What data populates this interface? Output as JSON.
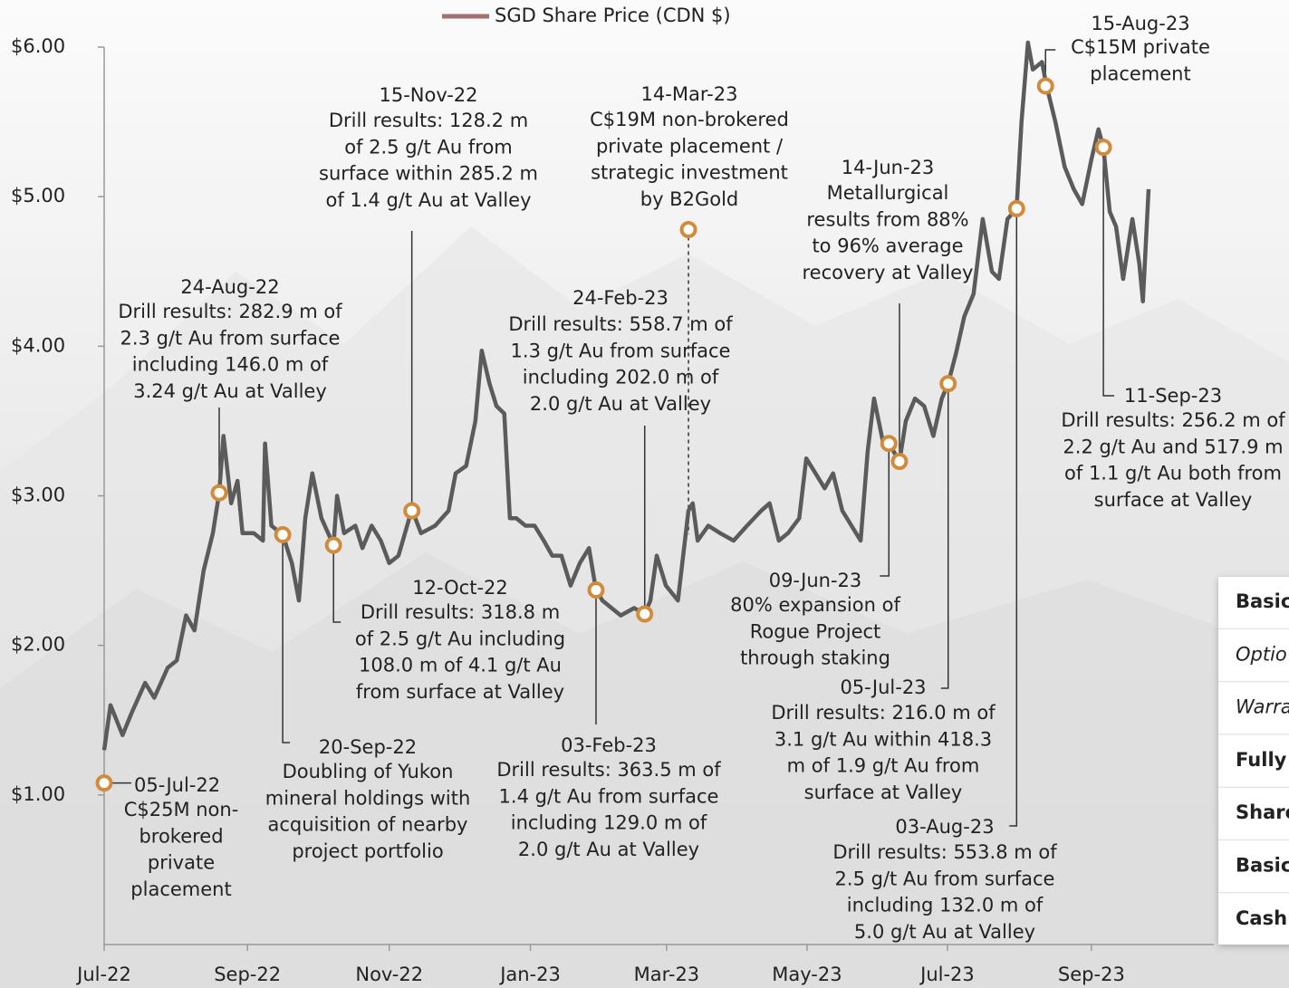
{
  "chart_data": {
    "type": "line",
    "legend": "SGD Share Price (CDN $)",
    "xlim": [
      0,
      16.79
    ],
    "xticks": [
      {
        "value": 0,
        "label": "Jul-22"
      },
      {
        "value": 2.03,
        "label": "Sep-22"
      },
      {
        "value": 4.04,
        "label": "Nov-22"
      },
      {
        "value": 6.04,
        "label": "Jan-23"
      },
      {
        "value": 7.97,
        "label": "Mar-23"
      },
      {
        "value": 9.96,
        "label": "May-23"
      },
      {
        "value": 11.95,
        "label": "Jul-23"
      },
      {
        "value": 13.99,
        "label": "Sep-23"
      }
    ],
    "ylim": [
      0,
      6
    ],
    "yticks": [
      {
        "value": 1,
        "label": "$1.00"
      },
      {
        "value": 2,
        "label": "$2.00"
      },
      {
        "value": 3,
        "label": "$3.00"
      },
      {
        "value": 4,
        "label": "$4.00"
      },
      {
        "value": 5,
        "label": "$5.00"
      },
      {
        "value": 6,
        "label": "$6.00"
      }
    ],
    "series": [
      {
        "name": "SGD Share Price (CDN $)",
        "color": "#5b5b5b",
        "x": [
          0,
          0.09,
          0.26,
          0.39,
          0.58,
          0.71,
          0.9,
          1.03,
          1.16,
          1.28,
          1.41,
          1.54,
          1.63,
          1.69,
          1.8,
          1.89,
          1.96,
          2.12,
          2.25,
          2.28,
          2.37,
          2.53,
          2.66,
          2.76,
          2.85,
          2.95,
          3.08,
          3.25,
          3.3,
          3.4,
          3.56,
          3.66,
          3.79,
          3.92,
          4.04,
          4.17,
          4.36,
          4.49,
          4.69,
          4.88,
          4.98,
          5.13,
          5.26,
          5.35,
          5.46,
          5.56,
          5.67,
          5.75,
          5.84,
          5.97,
          6.1,
          6.23,
          6.35,
          6.48,
          6.61,
          6.74,
          6.87,
          6.97,
          7.06,
          7.19,
          7.32,
          7.51,
          7.66,
          7.74,
          7.83,
          7.96,
          8.13,
          8.28,
          8.34,
          8.41,
          8.56,
          8.73,
          8.92,
          9.11,
          9.31,
          9.43,
          9.56,
          9.69,
          9.85,
          9.95,
          10.08,
          10.21,
          10.33,
          10.46,
          10.59,
          10.72,
          10.82,
          10.91,
          11.04,
          11.12,
          11.27,
          11.36,
          11.49,
          11.62,
          11.75,
          11.87,
          11.96,
          12.07,
          12.19,
          12.32,
          12.45,
          12.58,
          12.68,
          12.8,
          12.93,
          13.0,
          13.09,
          13.16,
          13.29,
          13.35,
          13.48,
          13.61,
          13.74,
          13.86,
          13.99,
          14.09,
          14.16,
          14.25,
          14.34,
          14.44,
          14.57,
          14.67,
          14.72,
          14.8
        ],
        "values": [
          1.3,
          1.6,
          1.4,
          1.55,
          1.75,
          1.65,
          1.85,
          1.9,
          2.2,
          2.1,
          2.5,
          2.75,
          3.02,
          3.4,
          2.95,
          3.1,
          2.75,
          2.75,
          2.7,
          3.35,
          2.8,
          2.74,
          2.55,
          2.3,
          2.85,
          3.15,
          2.85,
          2.67,
          3.0,
          2.75,
          2.8,
          2.65,
          2.8,
          2.7,
          2.55,
          2.6,
          2.91,
          2.75,
          2.8,
          2.9,
          3.15,
          3.2,
          3.5,
          3.97,
          3.75,
          3.6,
          3.55,
          2.85,
          2.85,
          2.8,
          2.8,
          2.7,
          2.6,
          2.6,
          2.4,
          2.55,
          2.65,
          2.37,
          2.3,
          2.25,
          2.2,
          2.25,
          2.21,
          2.3,
          2.6,
          2.4,
          2.3,
          2.9,
          2.95,
          2.7,
          2.8,
          2.75,
          2.7,
          2.8,
          2.9,
          2.95,
          2.7,
          2.75,
          2.85,
          3.25,
          3.15,
          3.05,
          3.15,
          2.9,
          2.8,
          2.7,
          3.3,
          3.65,
          3.35,
          3.35,
          3.23,
          3.5,
          3.65,
          3.6,
          3.4,
          3.65,
          3.75,
          3.95,
          4.2,
          4.35,
          4.85,
          4.5,
          4.45,
          4.85,
          4.92,
          5.5,
          6.03,
          5.85,
          5.9,
          5.75,
          5.5,
          5.2,
          5.05,
          4.95,
          5.25,
          5.45,
          5.33,
          4.9,
          4.8,
          4.45,
          4.85,
          4.55,
          4.3,
          5.05
        ]
      }
    ],
    "marker_color": "#d08c3c",
    "annotations": [
      {
        "date": "05-Jul-22",
        "lines": [
          "C$25M non-",
          "brokered",
          "private",
          "placement"
        ],
        "x": 0,
        "y": 1.08
      },
      {
        "date": "24-Aug-22",
        "lines": [
          "Drill results: 282.9 m of",
          "2.3 g/t Au from surface",
          "including 146.0 m of",
          "3.24 g/t Au at Valley"
        ],
        "x": 1.63,
        "y": 3.02
      },
      {
        "date": "20-Sep-22",
        "lines": [
          "Doubling of Yukon",
          "mineral holdings with",
          "acquisition of nearby",
          "project portfolio"
        ],
        "x": 2.53,
        "y": 2.74
      },
      {
        "date": "12-Oct-22",
        "lines": [
          "Drill results: 318.8 m",
          "of 2.5 g/t Au including",
          "108.0 m of 4.1 g/t Au",
          "from surface at Valley"
        ],
        "x": 3.25,
        "y": 2.67
      },
      {
        "date": "15-Nov-22",
        "lines": [
          "Drill results: 128.2 m",
          "of 2.5 g/t Au from",
          "surface within 285.2 m",
          "of 1.4 g/t Au at Valley"
        ],
        "x": 4.36,
        "y": 2.9
      },
      {
        "date": "03-Feb-23",
        "lines": [
          "Drill results: 363.5 m of",
          "1.4 g/t Au from surface",
          "including 129.0 m of",
          "2.0 g/t Au at Valley"
        ],
        "x": 6.97,
        "y": 2.37
      },
      {
        "date": "24-Feb-23",
        "lines": [
          "Drill results: 558.7 m of",
          "1.3 g/t Au from surface",
          "including 202.0 m of",
          "2.0 g/t Au at Valley"
        ],
        "x": 7.66,
        "y": 2.21
      },
      {
        "date": "14-Mar-23",
        "lines": [
          "C$19M non-brokered",
          "private placement /",
          "strategic investment",
          "by B2Gold"
        ],
        "x": 8.28,
        "y": 4.78
      },
      {
        "date": "09-Jun-23",
        "lines": [
          "80% expansion of",
          "Rogue Project",
          "through staking"
        ],
        "x": 11.12,
        "y": 3.35
      },
      {
        "date": "14-Jun-23",
        "lines": [
          "Metallurgical",
          "results from 88%",
          "to 96% average",
          "recovery at Valley"
        ],
        "x": 11.27,
        "y": 3.23
      },
      {
        "date": "05-Jul-23",
        "lines": [
          "Drill results: 216.0 m of",
          "3.1 g/t Au within 418.3",
          "m of 1.9 g/t Au from",
          "surface at Valley"
        ],
        "x": 11.96,
        "y": 3.75
      },
      {
        "date": "03-Aug-23",
        "lines": [
          "Drill results: 553.8 m of",
          "2.5 g/t Au from surface",
          "including 132.0 m of",
          "5.0 g/t Au at Valley"
        ],
        "x": 12.93,
        "y": 4.92
      },
      {
        "date": "15-Aug-23",
        "lines": [
          "C$15M private",
          "placement"
        ],
        "x": 13.34,
        "y": 5.74
      },
      {
        "date": "11-Sep-23",
        "lines": [
          "Drill results: 256.2 m of",
          "2.2 g/t Au and 517.9 m",
          "of 1.1 g/t Au both from",
          "surface at Valley"
        ],
        "x": 14.16,
        "y": 5.33
      }
    ]
  },
  "table": {
    "rows": [
      "Basic",
      "Optio",
      "Warra",
      "Fully",
      "Share",
      "Basic",
      "Cash"
    ]
  }
}
